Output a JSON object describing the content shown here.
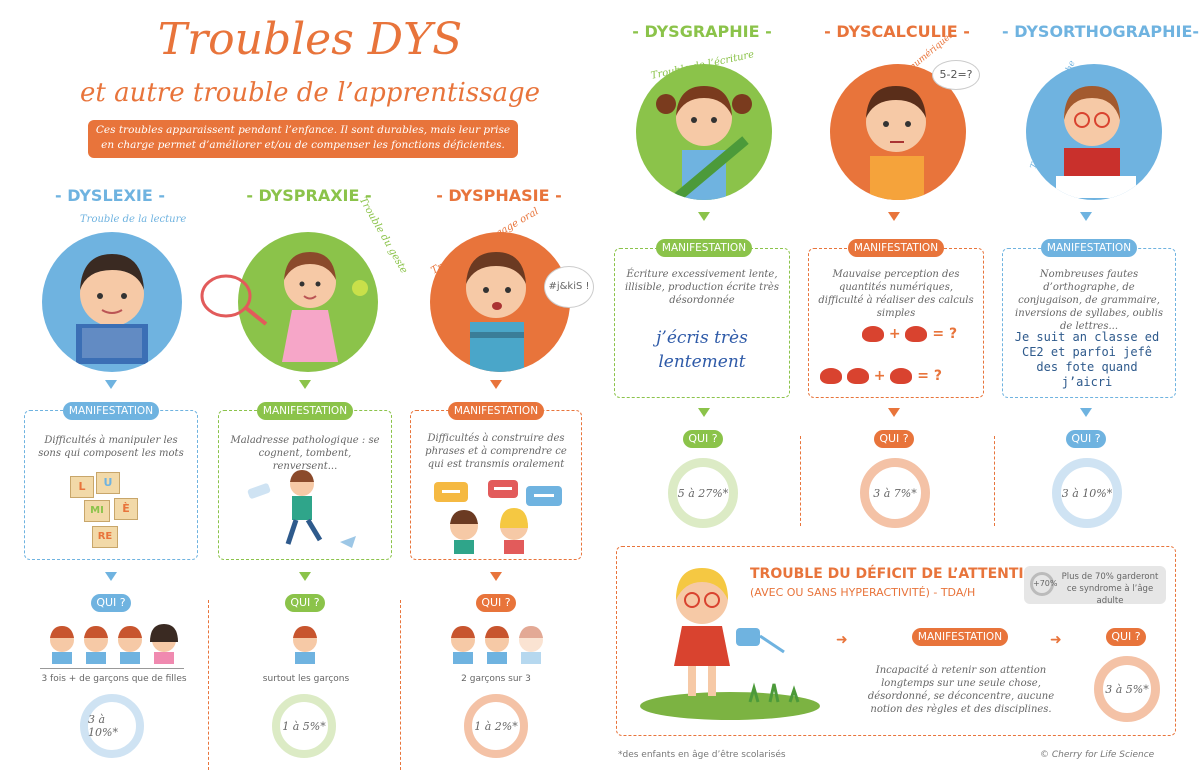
{
  "header": {
    "title": "Troubles DYS",
    "subtitle": "et autre trouble de l’apprentissage",
    "intro": "Ces troubles apparaissent pendant l’enfance. Il sont durables, mais leur prise en charge permet d’améliorer et/ou de compenser les fonctions déficientes."
  },
  "colors": {
    "blue": "#6fb3e0",
    "green": "#8bc34a",
    "orange": "#e8743b"
  },
  "common": {
    "manifestation": "MANIFESTATION",
    "qui": "QUI ?"
  },
  "sections": [
    {
      "title": "- DYSLEXIE -",
      "subtitle": "Trouble de la lecture",
      "description": "Difficultés à manipuler les sons qui composent les mots",
      "blocks": [
        "L",
        "U",
        "MI",
        "È",
        "RE"
      ],
      "who_text": "3 fois + de garçons que de filles",
      "stat": "3 à 10%*"
    },
    {
      "title": "- DYSPRAXIE -",
      "subtitle": "Trouble du geste",
      "description": "Maladresse pathologique : se cognent, tombent, renversent...",
      "who_text": "surtout les garçons",
      "stat": "1 à 5%*"
    },
    {
      "title": "- DYSPHASIE -",
      "subtitle": "Trouble du langage oral",
      "speech": "#j&kiS !",
      "description": "Difficultés à construire des phrases et à comprendre ce qui est transmis oralement",
      "who_text": "2 garçons sur 3",
      "stat": "1 à 2%*"
    },
    {
      "title": "- DYSGRAPHIE -",
      "subtitle": "Trouble de l’écriture",
      "description": "Écriture excessivement lente, illisible, production écrite très désordonnée",
      "handwriting": "j’écris très lentement",
      "stat": "5 à 27%*"
    },
    {
      "title": "- DYSCALCULIE -",
      "subtitle": "Trouble des activités numériques",
      "thought": "5-2=?",
      "description": "Mauvaise perception des quantités numériques, difficulté à réaliser des calculs simples",
      "equation_symbols": [
        "+",
        "=",
        "?"
      ],
      "stat": "3 à 7%*"
    },
    {
      "title": "- DYSORTHOGRAPHIE-",
      "subtitle": "Trouble de l’orthographe",
      "description": "Nombreuses fautes d’orthographe, de conjugaison, de grammaire, inversions de syllabes, oublis de lettres...",
      "sample_text": "Je suit an classe ed CE2 et parfoi jefê des fote quand j’aicri",
      "stat": "3 à 10%*"
    }
  ],
  "attention": {
    "title": "TROUBLE DU DÉFICIT DE L’ATTENTION",
    "subtitle": "(AVEC OU SANS HYPERACTIVITÉ) - TDA/H",
    "badge": "+70%",
    "badge_text": "Plus de 70% garderont ce syndrome à l’âge adulte",
    "description": "Incapacité à retenir son attention longtemps sur une seule chose, désordonné, se déconcentre, aucune notion des règles et des disciplines.",
    "stat": "3 à 5%*"
  },
  "footer": {
    "note": "*des enfants en âge d’être scolarisés",
    "credit": "© Cherry for Life Science"
  }
}
